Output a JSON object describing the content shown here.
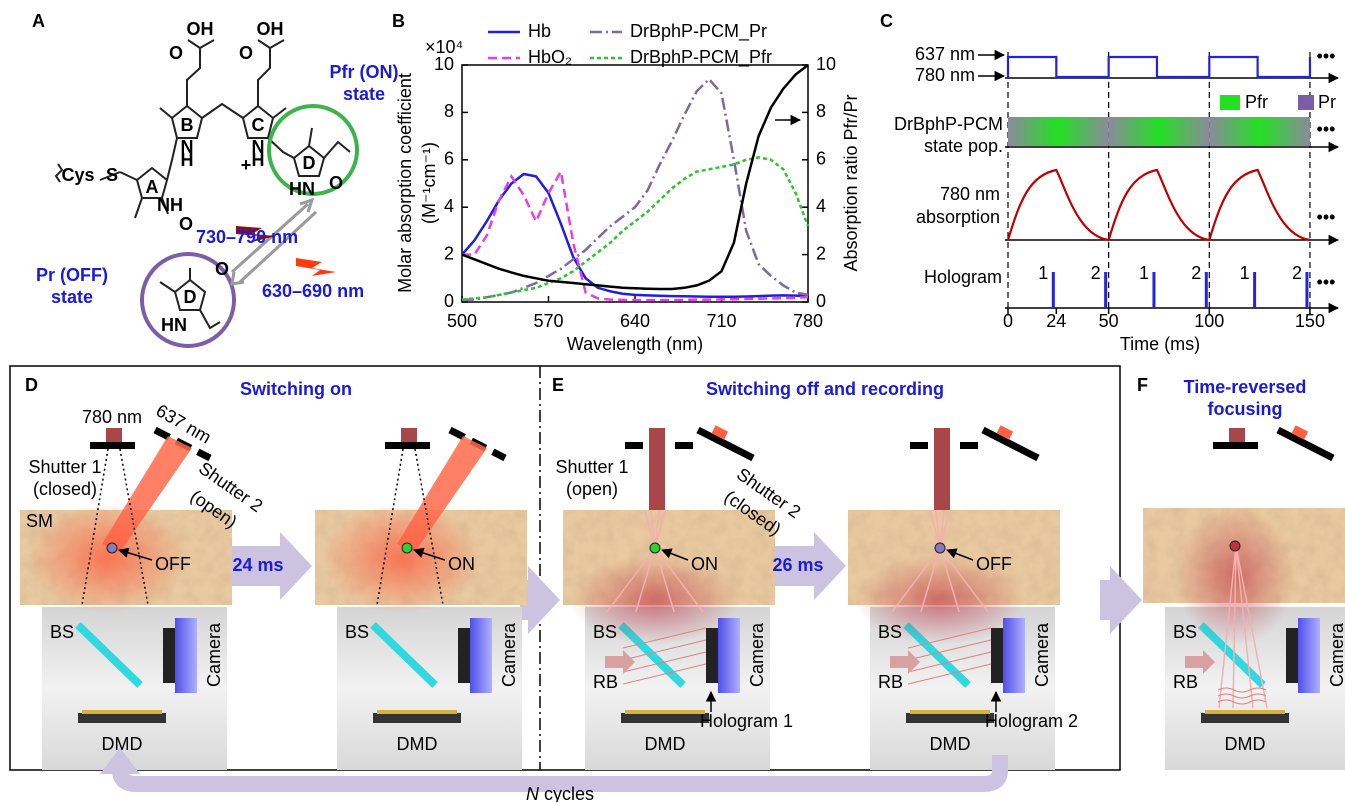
{
  "panel_labels": [
    "A",
    "B",
    "C",
    "D",
    "E",
    "F"
  ],
  "panel_a": {
    "atoms": [
      "OH",
      "O",
      "OH",
      "O",
      "N",
      "H",
      "N",
      "H",
      "+",
      "Cys",
      "S",
      "NH",
      "O",
      "HN",
      "O",
      "HN",
      "O"
    ],
    "rings": [
      "A",
      "B",
      "C",
      "D",
      "D"
    ],
    "pfr_state": [
      "Pfr (ON)",
      "state"
    ],
    "pr_state": [
      "Pr (OFF)",
      "state"
    ],
    "on_band": "730–790 nm",
    "off_band": "630–690 nm"
  },
  "chart_data": {
    "type": "line",
    "xlabel": "Wavelength (nm)",
    "ylabel": "Molar absorption coefficient",
    "yunit": "(M⁻¹cm⁻¹)",
    "y_multiplier": "×10⁴",
    "y2label": "Absorption ratio Pfr/Pr",
    "x": [
      500,
      510,
      520,
      530,
      540,
      550,
      560,
      570,
      580,
      590,
      600,
      610,
      620,
      630,
      640,
      650,
      660,
      670,
      680,
      690,
      700,
      710,
      720,
      730,
      740,
      750,
      760,
      770,
      780
    ],
    "xlim": [
      500,
      780
    ],
    "xticks": [
      500,
      570,
      640,
      710,
      780
    ],
    "ylim": [
      0,
      10
    ],
    "yticks": [
      0,
      2,
      4,
      6,
      8,
      10
    ],
    "y2lim": [
      0,
      10
    ],
    "y2ticks": [
      0,
      2,
      4,
      6,
      8,
      10
    ],
    "series": [
      {
        "name": "Hb",
        "color": "#1f1fe0",
        "dash": "solid",
        "values": [
          2.0,
          2.6,
          3.4,
          4.3,
          5.0,
          5.4,
          5.3,
          4.6,
          3.3,
          1.9,
          1.0,
          0.6,
          0.45,
          0.35,
          0.3,
          0.28,
          0.26,
          0.25,
          0.24,
          0.23,
          0.22,
          0.22,
          0.22,
          0.23,
          0.25,
          0.27,
          0.28,
          0.27,
          0.25
        ]
      },
      {
        "name": "HbO₂",
        "color": "#e83ee8",
        "dash": "dashed",
        "values": [
          2.0,
          2.0,
          2.8,
          4.3,
          5.3,
          4.5,
          3.4,
          4.6,
          5.5,
          2.5,
          0.4,
          0.15,
          0.1,
          0.09,
          0.08,
          0.08,
          0.08,
          0.08,
          0.09,
          0.1,
          0.1,
          0.11,
          0.12,
          0.13,
          0.14,
          0.15,
          0.16,
          0.18,
          0.2
        ]
      },
      {
        "name": "DrBphP-PCM_Pr",
        "color": "#7b68a6",
        "dash": "dashdot",
        "values": [
          0.1,
          0.1,
          0.2,
          0.3,
          0.4,
          0.6,
          0.8,
          1.1,
          1.4,
          1.8,
          2.2,
          2.7,
          3.2,
          3.6,
          4.0,
          4.7,
          5.8,
          6.8,
          7.9,
          8.9,
          9.4,
          8.8,
          6.0,
          3.0,
          1.6,
          1.1,
          0.7,
          0.4,
          0.3
        ]
      },
      {
        "name": "DrBphP-PCM_Pfr",
        "color": "#2ec42e",
        "dash": "dotted",
        "values": [
          0.1,
          0.15,
          0.2,
          0.3,
          0.4,
          0.5,
          0.6,
          0.8,
          1.0,
          1.3,
          1.7,
          2.1,
          2.5,
          3.0,
          3.4,
          3.8,
          4.3,
          4.8,
          5.2,
          5.5,
          5.6,
          5.7,
          5.8,
          6.0,
          6.1,
          6.0,
          5.6,
          4.6,
          3.2
        ]
      },
      {
        "color": "#000000",
        "dash": "solid",
        "axis": "y2",
        "values": [
          2.0,
          1.8,
          1.6,
          1.4,
          1.25,
          1.1,
          1.0,
          0.9,
          0.85,
          0.8,
          0.75,
          0.7,
          0.65,
          0.6,
          0.58,
          0.56,
          0.55,
          0.55,
          0.6,
          0.7,
          0.9,
          1.3,
          2.5,
          5.0,
          7.0,
          8.2,
          9.0,
          9.6,
          10.0
        ]
      }
    ]
  },
  "panel_c": {
    "laser_labels": [
      "637 nm",
      "780 nm"
    ],
    "legend": [
      "Pfr",
      "Pr"
    ],
    "state_label": [
      "DrBphP-PCM",
      "state pop."
    ],
    "absorption_label": [
      "780 nm",
      "absorption"
    ],
    "hologram_label": "Hologram",
    "hologram_indices": [
      1,
      2,
      1,
      2,
      1,
      2
    ],
    "time_ticks": [
      0,
      24,
      50,
      100,
      150
    ],
    "xlabel": "Time (ms)",
    "more": "•••"
  },
  "panel_d": {
    "title": "Switching on",
    "laser_780": "780 nm",
    "laser_637": "637 nm",
    "shutter_1": [
      "Shutter 1",
      "(closed)"
    ],
    "shutter_2": [
      "Shutter 2",
      "(open)"
    ],
    "sample": "SM",
    "state_before": "OFF",
    "state_after": "ON",
    "delay": "24 ms",
    "beam_splitter": "BS",
    "camera": "Camera",
    "dmd": "DMD"
  },
  "panel_e": {
    "title": "Switching off and recording",
    "shutter_1": [
      "Shutter 1",
      "(open)"
    ],
    "shutter_2": [
      "Shutter 2",
      "(closed)"
    ],
    "state_before": "ON",
    "state_after": "OFF",
    "delay": "26 ms",
    "beam_splitter": "BS",
    "reference_beam": "RB",
    "camera": "Camera",
    "dmd": "DMD",
    "holograms": [
      "Hologram 1",
      "Hologram 2"
    ]
  },
  "panel_f": {
    "title": [
      "Time-reversed",
      "focusing"
    ],
    "beam_splitter": "BS",
    "reference_beam": "RB",
    "camera": "Camera",
    "dmd": "DMD"
  },
  "cycle_label": [
    "N",
    "cycles"
  ]
}
